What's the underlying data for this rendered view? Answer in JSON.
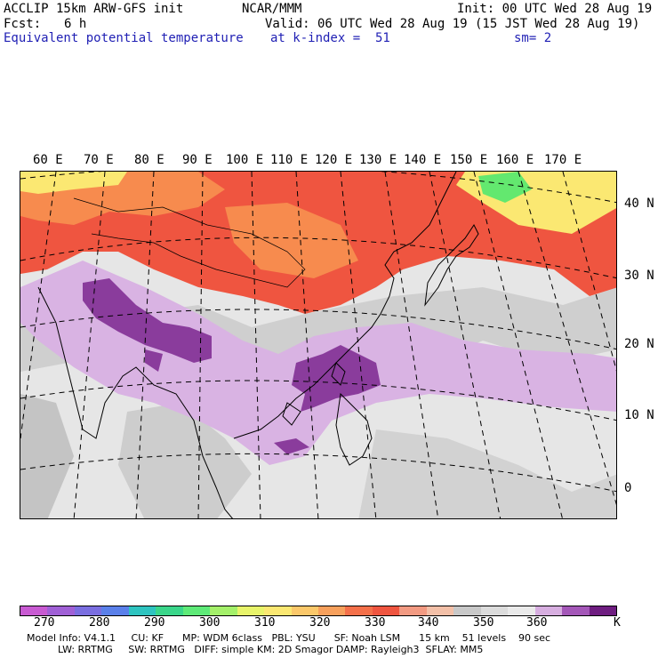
{
  "header": {
    "model": "ACCLIP 15km ARW-GFS init",
    "org": "NCAR/MMM",
    "init": "Init: 00 UTC Wed 28 Aug 19",
    "fcst_label": "Fcst:",
    "fcst_value": "6 h",
    "valid": "Valid: 06 UTC Wed 28 Aug 19 (15 JST Wed 28 Aug 19)",
    "field": "Equivalent potential temperature",
    "level": "at k-index =  51",
    "smoothing": "sm= 2"
  },
  "map": {
    "longitude_labels": [
      "60 E",
      "70 E",
      "80 E",
      "90 E",
      "100 E",
      "110 E",
      "120 E",
      "130 E",
      "140 E",
      "150 E",
      "160 E",
      "170 E"
    ],
    "latitude_labels": [
      "40 N",
      "30 N",
      "20 N",
      "10 N",
      "0"
    ],
    "fill_colors": {
      "warm_north": "#ef5540",
      "warm_orange": "#f78b4e",
      "yellow": "#fbe872",
      "green": "#63e86f",
      "light_gray": "#e6e6e6",
      "mid_gray": "#c9c9c9",
      "light_purple": "#d7aee0",
      "dark_purple": "#8f3fa0",
      "deep_purple": "#6e1d80"
    }
  },
  "colorbar": {
    "colors": [
      "#c85ad2",
      "#a060d6",
      "#7a6ee0",
      "#5a80ea",
      "#2ec4c0",
      "#3ad68a",
      "#5eea78",
      "#a4f06a",
      "#e8f46a",
      "#fbe872",
      "#fbc86a",
      "#f7a05c",
      "#f4704a",
      "#ef5540",
      "#f29a82",
      "#f3c0a8",
      "#c8c8c8",
      "#dcdcdc",
      "#eaeaea",
      "#d7aee0",
      "#a457b8",
      "#6e1d80"
    ],
    "labels": [
      "270",
      "280",
      "290",
      "300",
      "310",
      "320",
      "330",
      "340",
      "350",
      "360",
      "K"
    ]
  },
  "footer": {
    "line1": "Model Info: V4.1.1     CU: KF      MP: WDM 6class   PBL: YSU      SF: Noah LSM      15 km    51 levels    90 sec",
    "line2": "          LW: RRTMG     SW: RRTMG   DIFF: simple KM: 2D Smagor DAMP: Rayleigh3  SFLAY: MM5"
  }
}
